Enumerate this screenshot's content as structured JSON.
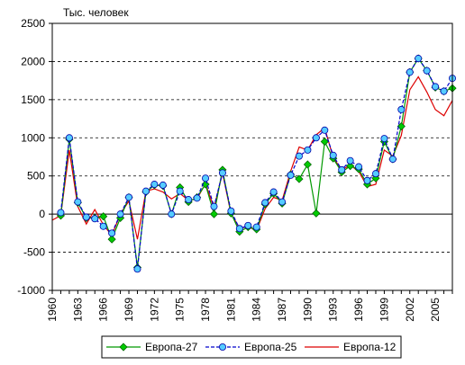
{
  "chart_data": {
    "type": "line",
    "title": "",
    "ylabel": "Тыс. человек",
    "xlabel": "",
    "xlim": [
      1960,
      2007
    ],
    "ylim": [
      -1000,
      2500
    ],
    "y_ticks": [
      -1000,
      -500,
      0,
      500,
      1000,
      1500,
      2000,
      2500
    ],
    "x_ticks": [
      "1960",
      "1963",
      "1966",
      "1969",
      "1972",
      "1975",
      "1978",
      "1981",
      "1984",
      "1987",
      "1990",
      "1993",
      "1996",
      "1999",
      "2002",
      "2005"
    ],
    "grid": "horizontal dashed",
    "legend_position": "bottom",
    "series": [
      {
        "name": "Европа-27",
        "color": "#009900",
        "marker": "diamond",
        "line": "solid",
        "x": [
          1961,
          1962,
          1963,
          1964,
          1965,
          1966,
          1967,
          1968,
          1969,
          1970,
          1971,
          1972,
          1973,
          1974,
          1975,
          1976,
          1977,
          1978,
          1979,
          1980,
          1981,
          1982,
          1983,
          1984,
          1985,
          1986,
          1987,
          1988,
          1989,
          1990,
          1991,
          1992,
          1993,
          1994,
          1995,
          1996,
          1997,
          1998,
          1999,
          2000,
          2001,
          2002,
          2003,
          2004,
          2005,
          2006,
          2007
        ],
        "values": [
          -20,
          980,
          150,
          -50,
          -50,
          -30,
          -330,
          -50,
          220,
          -700,
          290,
          380,
          370,
          0,
          350,
          160,
          220,
          390,
          0,
          580,
          10,
          -230,
          -170,
          -200,
          130,
          270,
          140,
          520,
          460,
          650,
          10,
          950,
          730,
          550,
          630,
          590,
          390,
          470,
          950,
          720,
          1150,
          1860,
          2040,
          1880,
          1660,
          1610,
          1650
        ]
      },
      {
        "name": "Европа-25",
        "color": "#0000cc",
        "marker": "circle",
        "line": "dashed",
        "x": [
          1961,
          1962,
          1963,
          1964,
          1965,
          1966,
          1967,
          1968,
          1969,
          1970,
          1971,
          1972,
          1973,
          1974,
          1975,
          1976,
          1977,
          1978,
          1979,
          1980,
          1981,
          1982,
          1983,
          1984,
          1985,
          1986,
          1987,
          1988,
          1989,
          1990,
          1991,
          1992,
          1993,
          1994,
          1995,
          1996,
          1997,
          1998,
          1999,
          2000,
          2001,
          2002,
          2003,
          2004,
          2005,
          2006,
          2007
        ],
        "values": [
          20,
          1000,
          160,
          -40,
          -60,
          -160,
          -250,
          0,
          220,
          -720,
          300,
          390,
          380,
          0,
          300,
          190,
          210,
          470,
          100,
          540,
          40,
          -190,
          -150,
          -170,
          150,
          290,
          160,
          510,
          760,
          840,
          1000,
          1100,
          770,
          580,
          700,
          620,
          440,
          530,
          990,
          720,
          1370,
          1860,
          2040,
          1880,
          1670,
          1610,
          1780
        ]
      },
      {
        "name": "Европа-12",
        "color": "#dd0000",
        "marker": "none",
        "line": "solid",
        "x": [
          1960,
          1961,
          1962,
          1963,
          1964,
          1965,
          1966,
          1967,
          1968,
          1969,
          1970,
          1971,
          1972,
          1973,
          1974,
          1975,
          1976,
          1977,
          1978,
          1979,
          1980,
          1981,
          1982,
          1983,
          1984,
          1985,
          1986,
          1987,
          1988,
          1989,
          1990,
          1991,
          1992,
          1993,
          1994,
          1995,
          1996,
          1997,
          1998,
          1999,
          2000,
          2001,
          2002,
          2003,
          2004,
          2005,
          2006,
          2007
        ],
        "values": [
          -80,
          -20,
          840,
          100,
          -130,
          60,
          -140,
          -280,
          0,
          170,
          -330,
          300,
          330,
          290,
          200,
          270,
          180,
          200,
          400,
          80,
          540,
          0,
          -180,
          -170,
          -210,
          70,
          220,
          180,
          560,
          880,
          840,
          1040,
          1130,
          740,
          580,
          640,
          560,
          360,
          390,
          840,
          760,
          1030,
          1630,
          1800,
          1600,
          1370,
          1290,
          1490
        ]
      }
    ]
  }
}
